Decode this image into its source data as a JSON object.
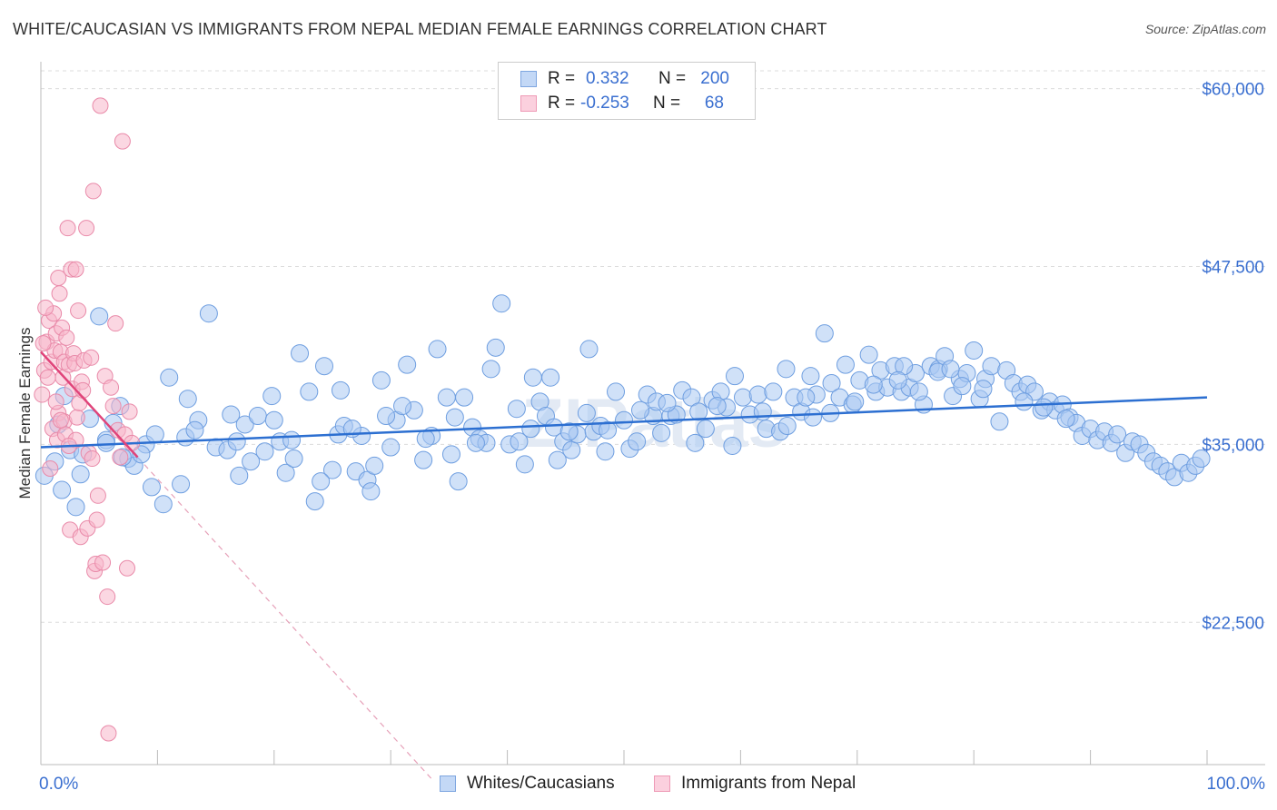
{
  "title": "WHITE/CAUCASIAN VS IMMIGRANTS FROM NEPAL MEDIAN FEMALE EARNINGS CORRELATION CHART",
  "source": "Source: ZipAtlas.com",
  "watermark": "ZIPatlas",
  "legend": {
    "rows": [
      {
        "r_label": "R =",
        "r_value": "0.332",
        "n_label": "N =",
        "n_value": "200",
        "color": "#a9c8f3"
      },
      {
        "r_label": "R =",
        "r_value": "-0.253",
        "n_label": "N =",
        "n_value": "68",
        "color": "#f7b6cb"
      }
    ]
  },
  "bottom_legend": [
    {
      "label": "Whites/Caucasians",
      "color": "#a9c8f3"
    },
    {
      "label": "Immigrants from Nepal",
      "color": "#f7b6cb"
    }
  ],
  "chart_data": {
    "type": "scatter",
    "title": "WHITE/CAUCASIAN VS IMMIGRANTS FROM NEPAL MEDIAN FEMALE EARNINGS CORRELATION CHART",
    "xlabel": "",
    "ylabel": "Median Female Earnings",
    "xlim": [
      0,
      100
    ],
    "ylim": [
      12500,
      61250
    ],
    "x_tick_labels": [
      "0.0%",
      "100.0%"
    ],
    "y_ticks": [
      22500,
      35000,
      47500,
      60000
    ],
    "y_tick_labels": [
      "$22,500",
      "$35,000",
      "$47,500",
      "$60,000"
    ],
    "grid": true,
    "series": [
      {
        "name": "Whites/Caucasians",
        "color": "#a9c8f3",
        "stroke": "#6e9ee0",
        "trend": {
          "x": [
            0,
            100
          ],
          "y": [
            34800,
            38300
          ],
          "color": "#2c6fd1"
        },
        "points": [
          [
            0.3,
            32800
          ],
          [
            1.2,
            33800
          ],
          [
            1.8,
            31800
          ],
          [
            2.5,
            34600
          ],
          [
            3.0,
            30600
          ],
          [
            3.4,
            32900
          ],
          [
            4.2,
            36800
          ],
          [
            5.0,
            44000
          ],
          [
            5.6,
            35300
          ],
          [
            6.2,
            36500
          ],
          [
            6.8,
            37700
          ],
          [
            7.5,
            34000
          ],
          [
            8.0,
            33500
          ],
          [
            9.0,
            35000
          ],
          [
            9.5,
            32000
          ],
          [
            10.5,
            30800
          ],
          [
            11.0,
            39700
          ],
          [
            12.0,
            32200
          ],
          [
            12.6,
            38200
          ],
          [
            13.5,
            36700
          ],
          [
            14.4,
            44200
          ],
          [
            15.0,
            34800
          ],
          [
            16.0,
            34600
          ],
          [
            16.8,
            35200
          ],
          [
            17.5,
            36400
          ],
          [
            18.0,
            33800
          ],
          [
            18.6,
            37000
          ],
          [
            19.2,
            34500
          ],
          [
            19.8,
            38400
          ],
          [
            20.5,
            35200
          ],
          [
            21.0,
            33000
          ],
          [
            21.7,
            34000
          ],
          [
            22.2,
            41400
          ],
          [
            23.0,
            38700
          ],
          [
            23.5,
            31000
          ],
          [
            24.3,
            40500
          ],
          [
            25.0,
            33200
          ],
          [
            25.5,
            35700
          ],
          [
            26.0,
            36300
          ],
          [
            27.0,
            33100
          ],
          [
            27.5,
            35600
          ],
          [
            28.0,
            32500
          ],
          [
            28.6,
            33500
          ],
          [
            29.2,
            39500
          ],
          [
            30.0,
            34800
          ],
          [
            30.5,
            36700
          ],
          [
            31.4,
            40600
          ],
          [
            32.0,
            37400
          ],
          [
            32.8,
            33900
          ],
          [
            33.5,
            35600
          ],
          [
            34.0,
            41700
          ],
          [
            34.8,
            38300
          ],
          [
            35.2,
            34300
          ],
          [
            35.8,
            32400
          ],
          [
            36.3,
            38300
          ],
          [
            37.0,
            36200
          ],
          [
            37.6,
            35400
          ],
          [
            38.2,
            35100
          ],
          [
            39.0,
            41800
          ],
          [
            39.5,
            44900
          ],
          [
            40.2,
            35000
          ],
          [
            41.0,
            35200
          ],
          [
            41.5,
            33600
          ],
          [
            42.2,
            39700
          ],
          [
            42.8,
            38000
          ],
          [
            43.3,
            37000
          ],
          [
            44.0,
            36200
          ],
          [
            44.8,
            35200
          ],
          [
            45.5,
            34600
          ],
          [
            46.0,
            35700
          ],
          [
            46.8,
            37200
          ],
          [
            47.4,
            35900
          ],
          [
            48.0,
            36300
          ],
          [
            48.6,
            36000
          ],
          [
            49.3,
            38700
          ],
          [
            50.0,
            36700
          ],
          [
            50.5,
            34700
          ],
          [
            51.1,
            35200
          ],
          [
            52.0,
            38500
          ],
          [
            52.5,
            37000
          ],
          [
            53.2,
            35800
          ],
          [
            54.0,
            37000
          ],
          [
            54.5,
            37100
          ],
          [
            55.0,
            38800
          ],
          [
            55.8,
            38300
          ],
          [
            56.4,
            37300
          ],
          [
            57.0,
            36100
          ],
          [
            57.6,
            38100
          ],
          [
            58.3,
            38700
          ],
          [
            58.8,
            37600
          ],
          [
            59.5,
            39800
          ],
          [
            60.2,
            38300
          ],
          [
            60.8,
            37100
          ],
          [
            61.5,
            38500
          ],
          [
            62.2,
            36100
          ],
          [
            62.8,
            38700
          ],
          [
            63.4,
            35900
          ],
          [
            64.0,
            36300
          ],
          [
            64.6,
            38300
          ],
          [
            65.2,
            37300
          ],
          [
            66.0,
            39800
          ],
          [
            66.5,
            38500
          ],
          [
            67.2,
            42800
          ],
          [
            67.8,
            39300
          ],
          [
            68.5,
            38300
          ],
          [
            69.0,
            40600
          ],
          [
            69.6,
            37800
          ],
          [
            70.2,
            39500
          ],
          [
            71.0,
            41300
          ],
          [
            71.6,
            38700
          ],
          [
            72.0,
            40200
          ],
          [
            72.6,
            39000
          ],
          [
            73.2,
            40500
          ],
          [
            73.8,
            38700
          ],
          [
            74.5,
            39000
          ],
          [
            75.0,
            40000
          ],
          [
            75.7,
            37800
          ],
          [
            76.3,
            40500
          ],
          [
            77.0,
            40300
          ],
          [
            77.5,
            41200
          ],
          [
            78.2,
            38400
          ],
          [
            78.8,
            39600
          ],
          [
            79.4,
            40000
          ],
          [
            80.0,
            41600
          ],
          [
            80.5,
            38200
          ],
          [
            81.0,
            39600
          ],
          [
            81.5,
            40500
          ],
          [
            82.2,
            36600
          ],
          [
            82.8,
            40200
          ],
          [
            83.4,
            39300
          ],
          [
            84.0,
            38700
          ],
          [
            84.6,
            39200
          ],
          [
            85.2,
            38700
          ],
          [
            85.8,
            37400
          ],
          [
            86.5,
            38000
          ],
          [
            87.0,
            37400
          ],
          [
            87.6,
            37800
          ],
          [
            88.2,
            36900
          ],
          [
            88.8,
            36500
          ],
          [
            89.3,
            35600
          ],
          [
            90.0,
            36100
          ],
          [
            90.6,
            35300
          ],
          [
            91.2,
            35900
          ],
          [
            91.8,
            35100
          ],
          [
            92.3,
            35700
          ],
          [
            93.0,
            34400
          ],
          [
            93.6,
            35200
          ],
          [
            94.2,
            35000
          ],
          [
            94.8,
            34400
          ],
          [
            95.4,
            33800
          ],
          [
            96.0,
            33500
          ],
          [
            96.6,
            33100
          ],
          [
            97.2,
            32700
          ],
          [
            97.8,
            33700
          ],
          [
            98.4,
            33000
          ],
          [
            99.0,
            33500
          ],
          [
            99.5,
            34000
          ],
          [
            86.0,
            37600
          ],
          [
            79.0,
            39100
          ],
          [
            74.0,
            40500
          ],
          [
            66.2,
            36900
          ],
          [
            58.0,
            37700
          ],
          [
            52.8,
            38000
          ],
          [
            47.0,
            41700
          ],
          [
            43.7,
            39700
          ],
          [
            38.6,
            40300
          ],
          [
            33.0,
            35400
          ],
          [
            28.3,
            31700
          ],
          [
            25.7,
            38800
          ],
          [
            21.5,
            35300
          ],
          [
            16.3,
            37100
          ],
          [
            12.4,
            35500
          ],
          [
            8.6,
            34300
          ],
          [
            5.6,
            35100
          ],
          [
            2.0,
            38400
          ],
          [
            1.5,
            36400
          ],
          [
            3.6,
            34300
          ],
          [
            7.0,
            34100
          ],
          [
            9.8,
            35700
          ],
          [
            13.2,
            36000
          ],
          [
            17.0,
            32800
          ],
          [
            20.0,
            36700
          ],
          [
            24.0,
            32400
          ],
          [
            26.7,
            36100
          ],
          [
            29.6,
            37000
          ],
          [
            31.0,
            37700
          ],
          [
            35.5,
            36900
          ],
          [
            37.3,
            35100
          ],
          [
            40.8,
            37500
          ],
          [
            42.0,
            36100
          ],
          [
            44.3,
            33900
          ],
          [
            45.3,
            35900
          ],
          [
            48.4,
            34500
          ],
          [
            51.4,
            37400
          ],
          [
            53.7,
            37900
          ],
          [
            56.1,
            35100
          ],
          [
            59.3,
            34900
          ],
          [
            61.9,
            37300
          ],
          [
            63.9,
            40300
          ],
          [
            65.6,
            38300
          ],
          [
            67.7,
            37200
          ],
          [
            69.8,
            38000
          ],
          [
            71.4,
            39200
          ],
          [
            73.5,
            39500
          ],
          [
            75.3,
            38700
          ],
          [
            76.9,
            40100
          ],
          [
            78.0,
            40300
          ],
          [
            80.8,
            38900
          ],
          [
            84.3,
            38000
          ],
          [
            87.9,
            36800
          ]
        ]
      },
      {
        "name": "Immigrants from Nepal",
        "color": "#f7b6cb",
        "stroke": "#e98aa9",
        "trend": {
          "x": [
            0,
            8.3
          ],
          "y": [
            41500,
            34100
          ],
          "color": "#e0447a"
        },
        "trend_extension": {
          "x": [
            8.3,
            33.5
          ],
          "y": [
            34100,
            11500
          ]
        },
        "points": [
          [
            0.1,
            38500
          ],
          [
            0.3,
            40200
          ],
          [
            0.5,
            42200
          ],
          [
            0.7,
            43700
          ],
          [
            0.9,
            40800
          ],
          [
            1.0,
            36100
          ],
          [
            1.1,
            44200
          ],
          [
            1.2,
            41600
          ],
          [
            1.3,
            42800
          ],
          [
            1.4,
            35300
          ],
          [
            1.5,
            37200
          ],
          [
            1.5,
            46700
          ],
          [
            1.6,
            45600
          ],
          [
            1.7,
            41500
          ],
          [
            1.8,
            43200
          ],
          [
            1.9,
            39700
          ],
          [
            2.0,
            40800
          ],
          [
            2.0,
            36600
          ],
          [
            2.1,
            35700
          ],
          [
            2.2,
            42500
          ],
          [
            2.3,
            50200
          ],
          [
            2.4,
            40600
          ],
          [
            2.5,
            29000
          ],
          [
            2.6,
            47300
          ],
          [
            2.7,
            38900
          ],
          [
            2.8,
            41400
          ],
          [
            2.9,
            40700
          ],
          [
            3.0,
            35300
          ],
          [
            3.1,
            36900
          ],
          [
            3.2,
            44400
          ],
          [
            3.3,
            37900
          ],
          [
            3.4,
            28500
          ],
          [
            3.5,
            39400
          ],
          [
            3.6,
            38800
          ],
          [
            3.7,
            40900
          ],
          [
            3.9,
            50200
          ],
          [
            4.0,
            29100
          ],
          [
            4.1,
            34400
          ],
          [
            4.3,
            41100
          ],
          [
            4.4,
            34000
          ],
          [
            4.5,
            52800
          ],
          [
            4.6,
            26100
          ],
          [
            4.7,
            26600
          ],
          [
            4.8,
            29700
          ],
          [
            4.9,
            31400
          ],
          [
            5.1,
            58800
          ],
          [
            5.3,
            26700
          ],
          [
            5.5,
            39800
          ],
          [
            5.7,
            24300
          ],
          [
            5.8,
            14700
          ],
          [
            6.0,
            39000
          ],
          [
            6.2,
            37700
          ],
          [
            6.4,
            43500
          ],
          [
            6.6,
            36000
          ],
          [
            6.8,
            34100
          ],
          [
            7.0,
            56300
          ],
          [
            7.2,
            35700
          ],
          [
            7.4,
            26300
          ],
          [
            7.6,
            37300
          ],
          [
            7.8,
            35100
          ],
          [
            0.2,
            42100
          ],
          [
            0.4,
            44600
          ],
          [
            0.6,
            39700
          ],
          [
            0.8,
            33300
          ],
          [
            1.3,
            38000
          ],
          [
            1.7,
            36700
          ],
          [
            2.4,
            34900
          ],
          [
            3.0,
            47300
          ]
        ]
      }
    ]
  }
}
